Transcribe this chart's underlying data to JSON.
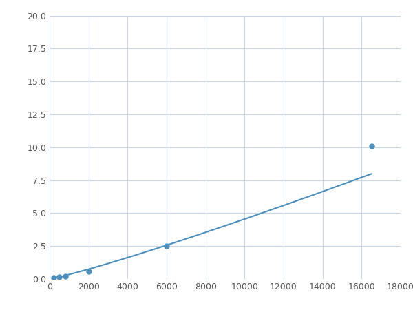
{
  "x": [
    200,
    500,
    800,
    2000,
    6000,
    16500
  ],
  "y": [
    0.08,
    0.15,
    0.2,
    0.6,
    2.5,
    10.1
  ],
  "line_color": "#4a8fbe",
  "marker_color": "#4a8fbe",
  "marker_size": 5,
  "xlim": [
    0,
    18000
  ],
  "ylim": [
    0,
    20.0
  ],
  "xticks": [
    0,
    2000,
    4000,
    6000,
    8000,
    10000,
    12000,
    14000,
    16000,
    18000
  ],
  "yticks": [
    0.0,
    2.5,
    5.0,
    7.5,
    10.0,
    12.5,
    15.0,
    17.5,
    20.0
  ],
  "grid_color": "#c8d8e8",
  "background_color": "#ffffff",
  "figsize": [
    6.0,
    4.5
  ],
  "dpi": 100,
  "power_a": 3.5e-09,
  "power_b": 2.0
}
